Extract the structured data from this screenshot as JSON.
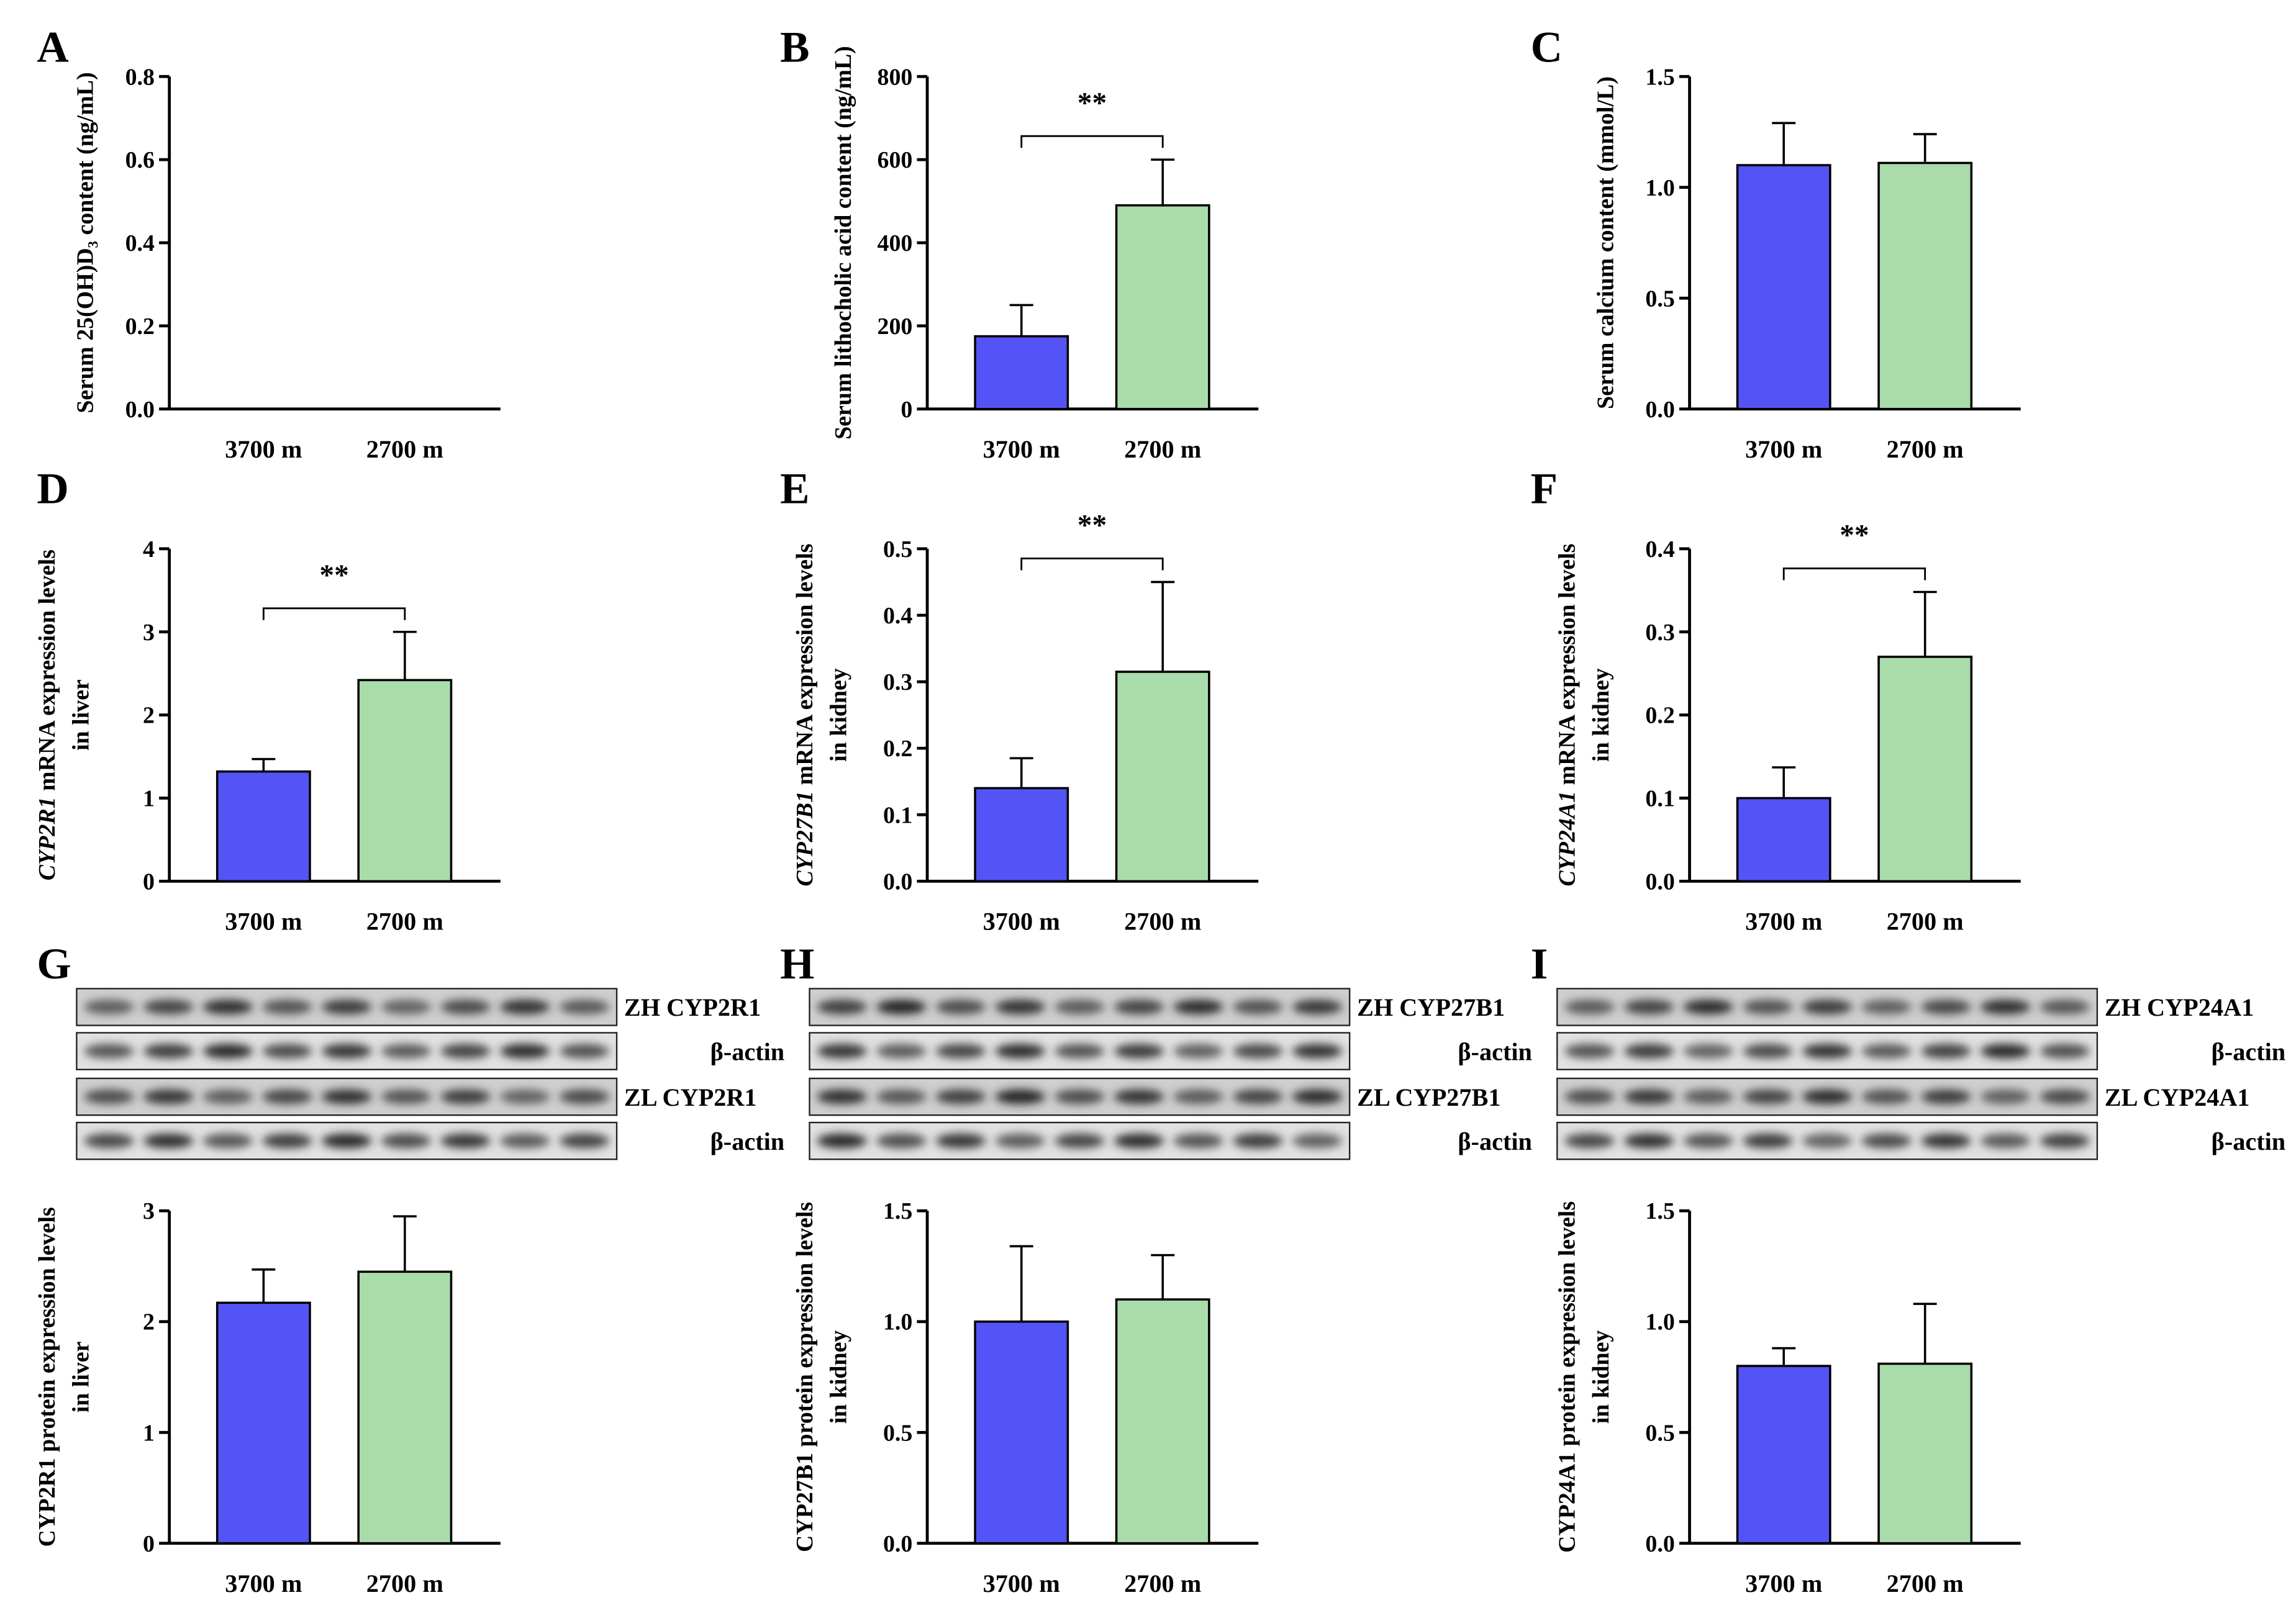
{
  "chart_data": [
    {
      "type": "bar",
      "panel": "A",
      "ylabel": [
        [
          "Serum 25(OH)D₃ content (ng/mL)"
        ]
      ],
      "italic_first": false,
      "categories": [
        "3700 m",
        "2700 m"
      ],
      "values": [
        null,
        null
      ],
      "errors": [
        null,
        null
      ],
      "colors": [
        "#5454f6",
        "#a9dcaa"
      ],
      "ylim": [
        0,
        0.8
      ],
      "yticks": [
        {
          "value": 0,
          "label": "0.0"
        },
        0.2,
        0.4,
        0.6,
        0.8
      ]
    },
    {
      "type": "bar",
      "panel": "B",
      "ylabel": [
        [
          "Serum lithocholic acid content (ng/mL)"
        ]
      ],
      "italic_first": false,
      "categories": [
        "3700 m",
        "2700 m"
      ],
      "values": [
        175,
        490
      ],
      "errors": [
        75,
        110
      ],
      "colors": [
        "#5454f6",
        "#a9dcaa"
      ],
      "ylim": [
        0,
        800
      ],
      "yticks": [
        0,
        200,
        400,
        600,
        800
      ],
      "annotation": "**"
    },
    {
      "type": "bar",
      "panel": "C",
      "ylabel": [
        [
          "Serum calcium content (mmol/L)"
        ]
      ],
      "italic_first": false,
      "categories": [
        "3700 m",
        "2700 m"
      ],
      "values": [
        1.1,
        1.11
      ],
      "errors": [
        0.19,
        0.13
      ],
      "colors": [
        "#5454f6",
        "#a9dcaa"
      ],
      "ylim": [
        0,
        1.5
      ],
      "yticks": [
        {
          "value": 0,
          "label": "0.0"
        },
        0.5,
        {
          "value": 1,
          "label": "1.0"
        },
        1.5
      ]
    },
    {
      "type": "bar",
      "panel": "D",
      "ylabel": [
        [
          "CYP2R1",
          " mRNA expression levels"
        ],
        [
          "in liver"
        ]
      ],
      "italic_first": true,
      "categories": [
        "3700 m",
        "2700 m"
      ],
      "values": [
        1.32,
        2.42
      ],
      "errors": [
        0.15,
        0.58
      ],
      "colors": [
        "#5454f6",
        "#a9dcaa"
      ],
      "ylim": [
        0,
        4
      ],
      "yticks": [
        0,
        1,
        2,
        3,
        4
      ],
      "annotation": "**"
    },
    {
      "type": "bar",
      "panel": "E",
      "ylabel": [
        [
          "CYP27B1",
          " mRNA expression levels"
        ],
        [
          "in kidney"
        ]
      ],
      "italic_first": true,
      "categories": [
        "3700 m",
        "2700 m"
      ],
      "values": [
        0.14,
        0.315
      ],
      "errors": [
        0.045,
        0.135
      ],
      "colors": [
        "#5454f6",
        "#a9dcaa"
      ],
      "ylim": [
        0,
        0.5
      ],
      "yticks": [
        {
          "value": 0,
          "label": "0.0"
        },
        0.1,
        0.2,
        0.3,
        0.4,
        0.5
      ],
      "annotation": "**"
    },
    {
      "type": "bar",
      "panel": "F",
      "ylabel": [
        [
          "CYP24A1",
          " mRNA expression levels"
        ],
        [
          "in kidney"
        ]
      ],
      "italic_first": true,
      "categories": [
        "3700 m",
        "2700 m"
      ],
      "values": [
        0.1,
        0.27
      ],
      "errors": [
        0.037,
        0.078
      ],
      "colors": [
        "#5454f6",
        "#a9dcaa"
      ],
      "ylim": [
        0,
        0.4
      ],
      "yticks": [
        {
          "value": 0,
          "label": "0.0"
        },
        0.1,
        0.2,
        0.3,
        0.4
      ],
      "annotation": "**"
    },
    {
      "type": "bar",
      "panel": "G",
      "ylabel": [
        [
          "CYP2R1 protein expression levels"
        ],
        [
          "in liver"
        ]
      ],
      "italic_first": false,
      "categories": [
        "3700 m",
        "2700 m"
      ],
      "values": [
        2.17,
        2.45
      ],
      "errors": [
        0.3,
        0.5
      ],
      "colors": [
        "#5454f6",
        "#a9dcaa"
      ],
      "ylim": [
        0,
        3
      ],
      "yticks": [
        0,
        1,
        2,
        3
      ],
      "blots": [
        "ZH  CYP2R1",
        "β-actin",
        "ZL  CYP2R1",
        "β-actin"
      ]
    },
    {
      "type": "bar",
      "panel": "H",
      "ylabel": [
        [
          "CYP27B1 protein expression levels"
        ],
        [
          "in kidney"
        ]
      ],
      "italic_first": false,
      "categories": [
        "3700 m",
        "2700 m"
      ],
      "values": [
        1.0,
        1.1
      ],
      "errors": [
        0.34,
        0.2
      ],
      "colors": [
        "#5454f6",
        "#a9dcaa"
      ],
      "ylim": [
        0,
        1.5
      ],
      "yticks": [
        {
          "value": 0,
          "label": "0.0"
        },
        0.5,
        {
          "value": 1,
          "label": "1.0"
        },
        1.5
      ],
      "blots": [
        "ZH  CYP27B1",
        "β-actin",
        "ZL  CYP27B1",
        "β-actin"
      ]
    },
    {
      "type": "bar",
      "panel": "I",
      "ylabel": [
        [
          "CYP24A1 protein expression levels"
        ],
        [
          "in kidney"
        ]
      ],
      "italic_first": false,
      "categories": [
        "3700 m",
        "2700 m"
      ],
      "values": [
        0.8,
        0.81
      ],
      "errors": [
        0.08,
        0.27
      ],
      "colors": [
        "#5454f6",
        "#a9dcaa"
      ],
      "ylim": [
        0,
        1.5
      ],
      "yticks": [
        {
          "value": 0,
          "label": "0.0"
        },
        0.5,
        {
          "value": 1,
          "label": "1.0"
        },
        1.5
      ],
      "blots": [
        "ZH  CYP24A1",
        "β-actin",
        "ZL  CYP24A1",
        "β-actin"
      ]
    }
  ]
}
